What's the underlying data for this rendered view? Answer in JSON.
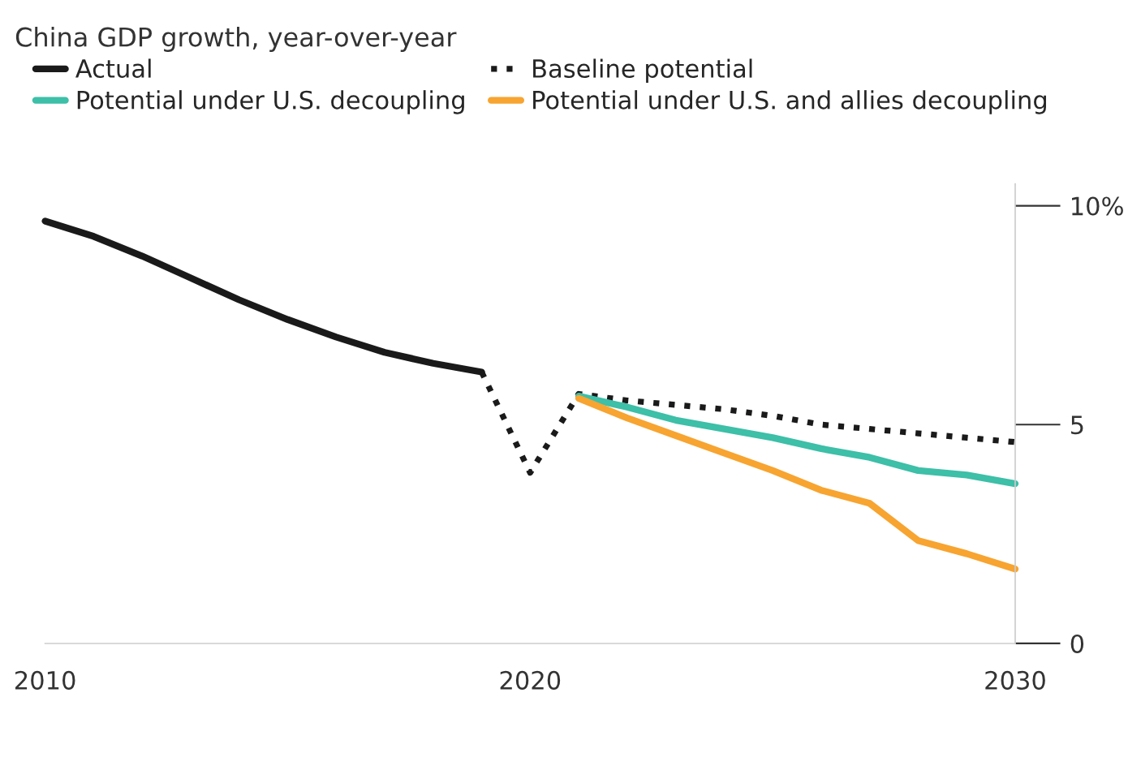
{
  "chart_data": {
    "type": "line",
    "title": "China GDP growth, year-over-year",
    "series": [
      {
        "name": "Actual",
        "color": "#1a1a1a",
        "line_style": "solid",
        "x": [
          2010,
          2011,
          2012,
          2013,
          2014,
          2015,
          2016,
          2017,
          2018,
          2019
        ],
        "values": [
          9.65,
          9.3,
          8.85,
          8.35,
          7.85,
          7.4,
          7.0,
          6.65,
          6.4,
          6.2
        ]
      },
      {
        "name": "Baseline potential",
        "color": "#1a1a1a",
        "line_style": "dotted",
        "x": [
          2019,
          2020,
          2021,
          2022,
          2023,
          2024,
          2025,
          2026,
          2027,
          2028,
          2029,
          2030
        ],
        "values": [
          6.2,
          3.9,
          5.7,
          5.55,
          5.45,
          5.35,
          5.2,
          5.0,
          4.9,
          4.8,
          4.7,
          4.6
        ]
      },
      {
        "name": "Potential under U.S. decoupling",
        "color": "#3dbfa8",
        "line_style": "solid",
        "x": [
          2021,
          2022,
          2023,
          2024,
          2025,
          2026,
          2027,
          2028,
          2029,
          2030
        ],
        "values": [
          5.65,
          5.4,
          5.1,
          4.9,
          4.7,
          4.45,
          4.25,
          3.95,
          3.85,
          3.65
        ]
      },
      {
        "name": "Potential under U.S. and allies decoupling",
        "color": "#f7a431",
        "line_style": "solid",
        "x": [
          2021,
          2022,
          2023,
          2024,
          2025,
          2026,
          2027,
          2028,
          2029,
          2030
        ],
        "values": [
          5.6,
          5.15,
          4.75,
          4.35,
          3.95,
          3.5,
          3.2,
          2.35,
          2.05,
          1.7
        ]
      }
    ],
    "xlim": [
      2010,
      2030
    ],
    "xticks": [
      2010,
      2020,
      2030
    ],
    "ylim": [
      0,
      10.5
    ],
    "yticks": [
      0,
      5,
      {
        "value": 10,
        "label": "10%"
      }
    ],
    "grid": false,
    "legend": "top left",
    "marker": "none"
  }
}
